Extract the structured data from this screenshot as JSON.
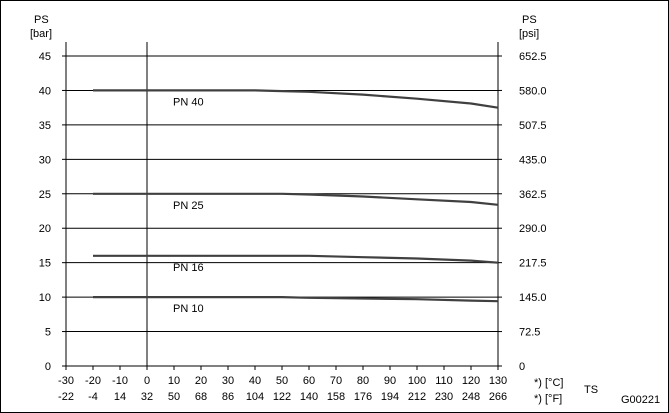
{
  "chart_data": {
    "type": "line",
    "left_axis": {
      "title": "PS",
      "unit": "[bar]",
      "ylim": [
        0,
        45
      ],
      "ticks": [
        0,
        5,
        10,
        15,
        20,
        25,
        30,
        35,
        40,
        45
      ]
    },
    "right_axis": {
      "title": "PS",
      "unit": "[psi]",
      "tick_labels": [
        "0",
        "72.5",
        "145.0",
        "217.5",
        "290.0",
        "362.5",
        "435.0",
        "507.5",
        "580.0",
        "652.5"
      ]
    },
    "x_axis": {
      "xlim": [
        -30,
        130
      ],
      "celsius_ticks": [
        -30,
        -20,
        -10,
        0,
        10,
        20,
        30,
        40,
        50,
        60,
        70,
        80,
        90,
        100,
        110,
        120,
        130
      ],
      "celsius_labels": [
        "-30",
        "-20",
        "-10",
        "0",
        "10",
        "20",
        "30",
        "40",
        "50",
        "60",
        "70",
        "80",
        "90",
        "100",
        "110",
        "120",
        "130"
      ],
      "fahrenheit_labels": [
        "-22",
        "-4",
        "14",
        "32",
        "50",
        "68",
        "86",
        "104",
        "122",
        "140",
        "158",
        "176",
        "194",
        "212",
        "230",
        "248",
        "266"
      ],
      "celsius_unit": "*) [°C]",
      "fahrenheit_unit": "*) [°F]",
      "title": "TS"
    },
    "figure_code": "G00221",
    "series": [
      {
        "name": "PN 40",
        "x": [
          -20,
          0,
          20,
          40,
          50,
          60,
          80,
          100,
          120,
          130
        ],
        "values": [
          40,
          40,
          40,
          40,
          39.9,
          39.8,
          39.4,
          38.8,
          38.1,
          37.5
        ]
      },
      {
        "name": "PN 25",
        "x": [
          -20,
          0,
          20,
          40,
          50,
          60,
          80,
          100,
          120,
          130
        ],
        "values": [
          25,
          25,
          25,
          25,
          25,
          24.9,
          24.6,
          24.2,
          23.8,
          23.4
        ]
      },
      {
        "name": "PN 16",
        "x": [
          -20,
          0,
          20,
          40,
          50,
          60,
          80,
          100,
          120,
          130
        ],
        "values": [
          16,
          16,
          16,
          16,
          16,
          16,
          15.8,
          15.6,
          15.3,
          15.0
        ]
      },
      {
        "name": "PN 10",
        "x": [
          -20,
          0,
          20,
          40,
          50,
          60,
          80,
          100,
          120,
          130
        ],
        "values": [
          10,
          10,
          10,
          10,
          10,
          9.9,
          9.8,
          9.7,
          9.5,
          9.4
        ]
      }
    ],
    "reference_line_x": 0,
    "gridlines": "horizontal",
    "colors": {
      "line": "#404040",
      "grid": "#000000",
      "axis": "#000000"
    }
  }
}
